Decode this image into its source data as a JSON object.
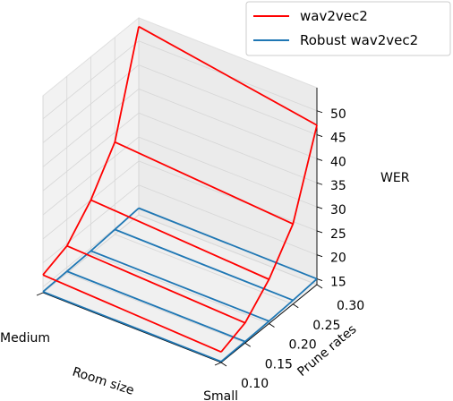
{
  "chart_data": {
    "type": "3d-line",
    "xlabel": "Room size",
    "ylabel": "Prune rates",
    "zlabel": "WER",
    "x_categories": [
      "Medium",
      "Small"
    ],
    "y_ticks": [
      "0.10",
      "0.15",
      "0.20",
      "0.25",
      "0.30"
    ],
    "z_ticks": [
      "15",
      "20",
      "25",
      "30",
      "35",
      "40",
      "45",
      "50"
    ],
    "ylim": [
      0.1,
      0.3
    ],
    "zlim": [
      15,
      50
    ],
    "legend_position": "top-right",
    "grid": true,
    "series": [
      {
        "name": "wav2vec2",
        "color": "#ff0000",
        "points": [
          {
            "room": "Medium",
            "prune": 0.1,
            "wer": 17.5
          },
          {
            "room": "Medium",
            "prune": 0.15,
            "wer": 19.5
          },
          {
            "room": "Medium",
            "prune": 0.2,
            "wer": 25.0
          },
          {
            "room": "Medium",
            "prune": 0.25,
            "wer": 33.0
          },
          {
            "room": "Medium",
            "prune": 0.3,
            "wer": 53.0
          },
          {
            "room": "Small",
            "prune": 0.1,
            "wer": 16.0
          },
          {
            "room": "Small",
            "prune": 0.15,
            "wer": 18.0
          },
          {
            "room": "Small",
            "prune": 0.2,
            "wer": 23.0
          },
          {
            "room": "Small",
            "prune": 0.25,
            "wer": 30.5
          },
          {
            "room": "Small",
            "prune": 0.3,
            "wer": 47.0
          }
        ]
      },
      {
        "name": "Robust wav2vec2",
        "color": "#1f77b4",
        "points": [
          {
            "room": "Medium",
            "prune": 0.1,
            "wer": 14.0
          },
          {
            "room": "Medium",
            "prune": 0.15,
            "wer": 14.2
          },
          {
            "room": "Medium",
            "prune": 0.2,
            "wer": 14.4
          },
          {
            "room": "Medium",
            "prune": 0.25,
            "wer": 14.8
          },
          {
            "room": "Medium",
            "prune": 0.3,
            "wer": 15.2
          },
          {
            "room": "Small",
            "prune": 0.1,
            "wer": 14.0
          },
          {
            "room": "Small",
            "prune": 0.15,
            "wer": 14.1
          },
          {
            "room": "Small",
            "prune": 0.2,
            "wer": 14.3
          },
          {
            "room": "Small",
            "prune": 0.25,
            "wer": 14.6
          },
          {
            "room": "Small",
            "prune": 0.3,
            "wer": 15.0
          }
        ]
      }
    ]
  }
}
